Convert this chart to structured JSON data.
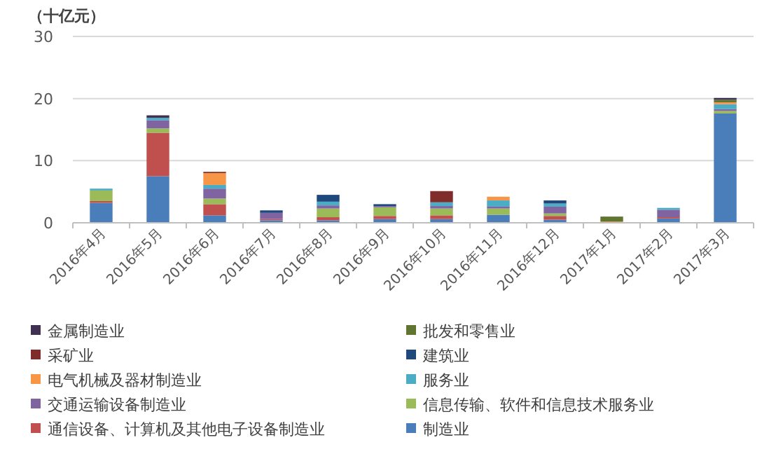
{
  "chart_data": {
    "type": "bar",
    "stacked": true,
    "ylabel": "（十亿元）",
    "categories": [
      "2016年4月",
      "2016年5月",
      "2016年6月",
      "2016年7月",
      "2016年8月",
      "2016年9月",
      "2016年10月",
      "2016年11月",
      "2016年12月",
      "2017年1月",
      "2017年2月",
      "2017年3月"
    ],
    "series": [
      {
        "name": "制造业",
        "color": "#4a7ebb",
        "values": [
          3.2,
          7.5,
          1.2,
          0.4,
          0.4,
          0.6,
          0.6,
          1.3,
          0.5,
          null,
          0.7,
          17.6
        ]
      },
      {
        "name": "通信设备、计算机及其他电子设备制造业",
        "color": "#c0504d",
        "values": [
          0.3,
          7.0,
          1.8,
          0.2,
          0.5,
          0.5,
          0.6,
          0,
          0.6,
          0,
          0.2,
          0
        ]
      },
      {
        "name": "信息传输、软件和信息技术服务业",
        "color": "#9bbb59",
        "values": [
          1.7,
          0.7,
          0.9,
          0,
          1.4,
          1.4,
          1.1,
          1.0,
          0.4,
          0,
          0,
          0.4
        ]
      },
      {
        "name": "交通运输设备制造业",
        "color": "#8064a2",
        "values": [
          0,
          1.3,
          1.6,
          1.0,
          0.5,
          0.2,
          0.4,
          0.3,
          1.1,
          0,
          1.2,
          0.3
        ]
      },
      {
        "name": "服务业",
        "color": "#4bacc6",
        "values": [
          0.3,
          0.4,
          0.6,
          0,
          0.6,
          0,
          0.6,
          1.0,
          0.5,
          0,
          0.3,
          0.8
        ]
      },
      {
        "name": "电气机械及器材制造业",
        "color": "#f79646",
        "values": [
          0,
          0,
          1.9,
          0,
          0,
          0,
          0,
          0.6,
          0,
          0.2,
          0,
          0.3
        ]
      },
      {
        "name": "建筑业",
        "color": "#1f497d",
        "values": [
          0,
          0,
          0,
          0.4,
          1.1,
          0.3,
          0,
          0,
          0.5,
          0,
          0,
          0
        ]
      },
      {
        "name": "采矿业",
        "color": "#7f2c2a",
        "values": [
          0,
          0,
          0.2,
          0,
          0,
          0,
          1.8,
          0,
          0,
          0,
          0,
          0
        ]
      },
      {
        "name": "批发和零售业",
        "color": "#5f7530",
        "values": [
          0,
          0,
          0,
          0,
          0,
          0,
          0,
          0,
          0,
          0.8,
          0,
          0.4
        ]
      },
      {
        "name": "金属制造业",
        "color": "#403152",
        "values": [
          0,
          0.4,
          0,
          0,
          0,
          0,
          0,
          0,
          0,
          0,
          0,
          0.3
        ]
      }
    ],
    "ylim": [
      0,
      30
    ],
    "yticks": [
      0,
      10,
      20,
      30
    ],
    "grid": "y",
    "legend": "bottom"
  }
}
